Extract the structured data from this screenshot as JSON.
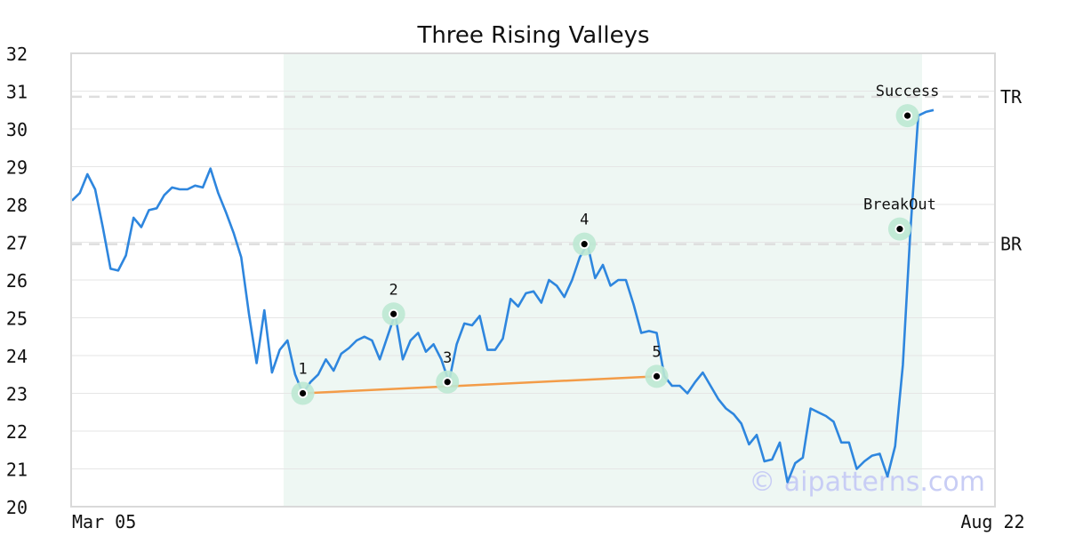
{
  "chart_data": {
    "type": "line",
    "title": "Three Rising Valleys",
    "watermark": "© aipatterns.com",
    "ylim": [
      20,
      32
    ],
    "yticks": [
      20,
      21,
      22,
      23,
      24,
      25,
      26,
      27,
      28,
      29,
      30,
      31,
      32
    ],
    "x_tick_labels": [
      {
        "x": 0,
        "label": "Mar 05"
      },
      {
        "x": 116,
        "label": "Aug 22"
      }
    ],
    "series": [
      {
        "color": "#2e86de",
        "values": [
          28.1,
          28.3,
          28.8,
          28.4,
          27.4,
          26.3,
          26.25,
          26.65,
          27.65,
          27.4,
          27.85,
          27.9,
          28.25,
          28.45,
          28.4,
          28.4,
          28.5,
          28.45,
          28.95,
          28.3,
          27.8,
          27.25,
          26.6,
          25.1,
          23.8,
          25.2,
          23.55,
          24.15,
          24.4,
          23.5,
          23.0,
          23.3,
          23.5,
          23.9,
          23.6,
          24.05,
          24.2,
          24.4,
          24.5,
          24.4,
          23.9,
          24.5,
          25.1,
          23.9,
          24.4,
          24.6,
          24.1,
          24.3,
          23.9,
          23.3,
          24.3,
          24.85,
          24.8,
          25.05,
          24.15,
          24.15,
          24.45,
          25.5,
          25.3,
          25.65,
          25.7,
          25.4,
          26.0,
          25.85,
          25.55,
          26.0,
          26.6,
          26.95,
          26.05,
          26.4,
          25.85,
          26.0,
          26.0,
          25.35,
          24.6,
          24.65,
          24.6,
          23.45,
          23.2,
          23.2,
          23.0,
          23.3,
          23.55,
          23.2,
          22.85,
          22.6,
          22.45,
          22.2,
          21.65,
          21.9,
          21.2,
          21.25,
          21.7,
          20.65,
          21.15,
          21.3,
          22.6,
          22.5,
          22.4,
          22.25,
          21.7,
          21.7,
          21.0,
          21.2,
          21.35,
          21.4,
          20.8,
          21.6,
          23.75,
          27.35,
          30.35,
          30.45,
          30.5
        ]
      }
    ],
    "pattern_region": {
      "x_start": 27.5,
      "x_end": 110.5
    },
    "support_line": {
      "from": {
        "x": 30,
        "y": 23.0
      },
      "to": {
        "x": 76,
        "y": 23.45
      },
      "color": "#f39c48"
    },
    "reference_lines": [
      {
        "label": "TR",
        "y": 30.85
      },
      {
        "label": "BR",
        "y": 26.95
      }
    ],
    "markers": [
      {
        "label": "1",
        "x": 30,
        "y": 23.0
      },
      {
        "label": "2",
        "x": 41.8,
        "y": 25.1
      },
      {
        "label": "3",
        "x": 48.8,
        "y": 23.3
      },
      {
        "label": "4",
        "x": 66.6,
        "y": 26.95
      },
      {
        "label": "5",
        "x": 76,
        "y": 23.45
      },
      {
        "label": "BreakOut",
        "x": 107.6,
        "y": 27.35
      },
      {
        "label": "Success",
        "x": 108.6,
        "y": 30.35
      }
    ]
  }
}
